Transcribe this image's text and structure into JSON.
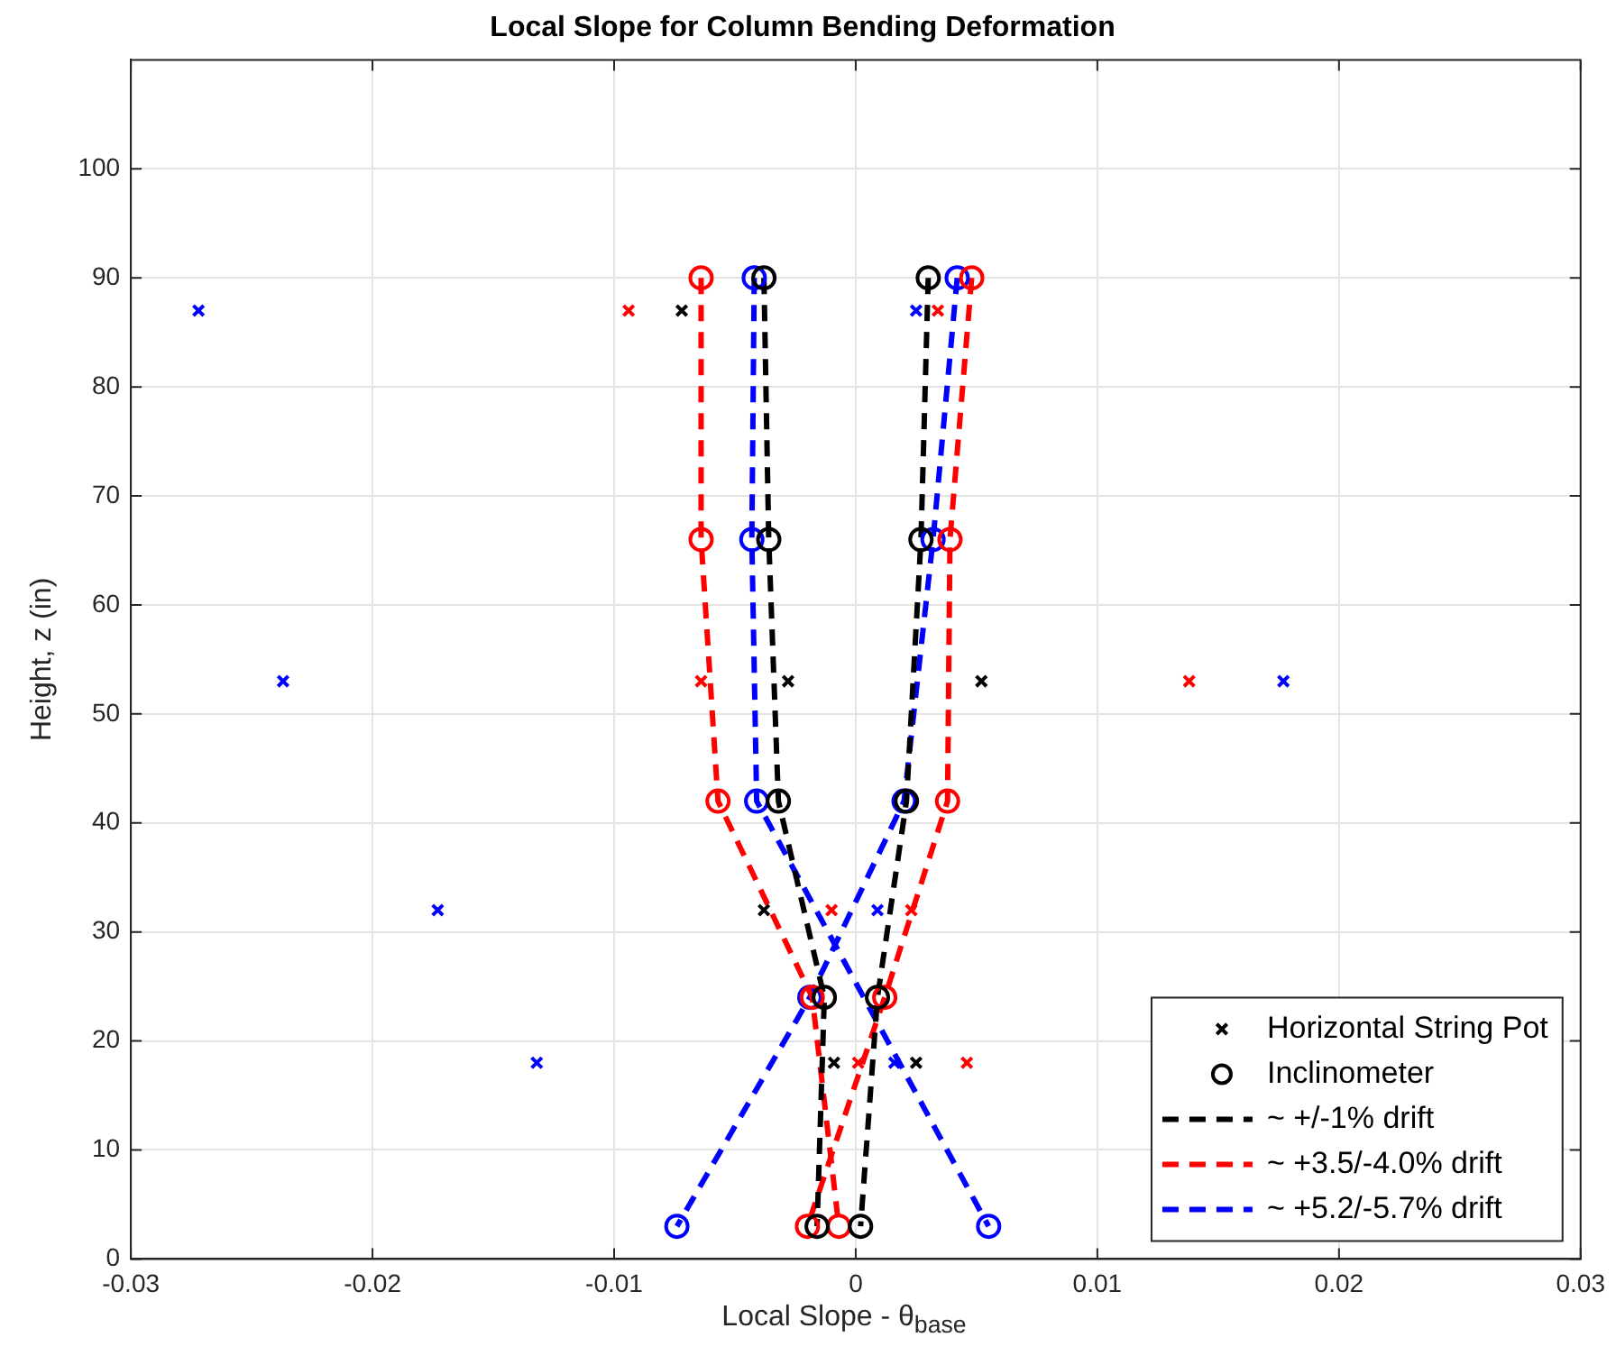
{
  "chart_data": {
    "type": "scatter",
    "title": "Local Slope for Column Bending Deformation",
    "xlabel": "Local Slope - θ$_{base}$",
    "ylabel": "Height, z (in)",
    "xlim": [
      -0.03,
      0.03
    ],
    "xticks": [
      -0.03,
      -0.02,
      -0.01,
      0,
      0.01,
      0.02,
      0.03
    ],
    "ylim": [
      0,
      110
    ],
    "yticks": [
      0,
      10,
      20,
      30,
      40,
      50,
      60,
      70,
      80,
      90,
      100
    ],
    "grid": true,
    "legend": "bottom right",
    "series": [
      {
        "name": "Horizontal String Pot",
        "type": "scatter",
        "marker": "cross",
        "color": "#000000",
        "x": [
          -0.0072,
          0.0052,
          -0.0028,
          -0.0038,
          -0.0009,
          0.0025
        ],
        "values": [
          87,
          53,
          53,
          32,
          18,
          18
        ]
      },
      {
        "type": "scatter",
        "marker": "cross",
        "color": "#ff0000",
        "x": [
          -0.0094,
          0.0034,
          -0.0064,
          0.0138,
          -0.001,
          0.0023,
          0.0001,
          0.0046
        ],
        "values": [
          87,
          87,
          53,
          53,
          32,
          32,
          18,
          18
        ]
      },
      {
        "type": "scatter",
        "marker": "cross",
        "color": "#0000ff",
        "x": [
          -0.0272,
          0.0025,
          -0.0237,
          0.0177,
          -0.0173,
          0.0009,
          -0.0132,
          0.0016
        ],
        "values": [
          87,
          87,
          53,
          53,
          32,
          32,
          18,
          18
        ]
      },
      {
        "name": "Inclinometer",
        "type": "scatter",
        "marker": "circle",
        "color": "#000000",
        "x": [
          -0.0038,
          -0.0036,
          -0.0032,
          -0.0013,
          -0.0016,
          0.003,
          0.0027,
          0.0021,
          0.0009,
          0.0002
        ],
        "values": [
          90,
          66,
          42,
          24,
          3,
          90,
          66,
          42,
          24,
          3
        ]
      },
      {
        "type": "scatter",
        "marker": "circle",
        "color": "#ff0000",
        "x": [
          -0.0064,
          -0.0064,
          -0.0057,
          -0.0018,
          -0.0007,
          0.0048,
          0.0039,
          0.0038,
          0.0012,
          -0.002
        ],
        "values": [
          90,
          66,
          42,
          24,
          3,
          90,
          66,
          42,
          24,
          3
        ]
      },
      {
        "type": "scatter",
        "marker": "circle",
        "color": "#0000ff",
        "x": [
          -0.0042,
          -0.0043,
          -0.0041,
          0.0055,
          0.0042,
          0.0032,
          0.002,
          -0.0019,
          -0.0074
        ],
        "values": [
          90,
          66,
          42,
          3,
          90,
          66,
          42,
          24,
          3
        ]
      },
      {
        "name": "~ +/-1% drift",
        "type": "line",
        "marker": "none",
        "line_style": "dashed",
        "color": "#000000",
        "x": [
          -0.0038,
          -0.0036,
          -0.0032,
          -0.0013,
          -0.0016
        ],
        "values": [
          90,
          66,
          42,
          24,
          3
        ]
      },
      {
        "type": "line",
        "marker": "none",
        "line_style": "dashed",
        "color": "#000000",
        "x": [
          0.003,
          0.0027,
          0.0021,
          0.0009,
          0.0002
        ],
        "values": [
          90,
          66,
          42,
          24,
          3
        ]
      },
      {
        "name": "~ +3.5/-4.0% drift",
        "type": "line",
        "marker": "none",
        "line_style": "dashed",
        "color": "#ff0000",
        "x": [
          -0.0064,
          -0.0064,
          -0.0057,
          -0.0018,
          -0.0007
        ],
        "values": [
          90,
          66,
          42,
          24,
          3
        ]
      },
      {
        "type": "line",
        "marker": "none",
        "line_style": "dashed",
        "color": "#ff0000",
        "x": [
          0.0048,
          0.0039,
          0.0038,
          0.0012,
          -0.002
        ],
        "values": [
          90,
          66,
          42,
          24,
          3
        ]
      },
      {
        "name": "~ +5.2/-5.7% drift",
        "type": "line",
        "marker": "none",
        "line_style": "dashed",
        "color": "#0000ff",
        "x": [
          -0.0042,
          -0.0043,
          -0.0041,
          0.0055
        ],
        "values": [
          90,
          66,
          42,
          3
        ]
      },
      {
        "type": "line",
        "marker": "none",
        "line_style": "dashed",
        "color": "#0000ff",
        "x": [
          0.0042,
          0.0032,
          0.002,
          -0.0019,
          -0.0074
        ],
        "values": [
          90,
          66,
          42,
          24,
          3
        ]
      }
    ]
  }
}
